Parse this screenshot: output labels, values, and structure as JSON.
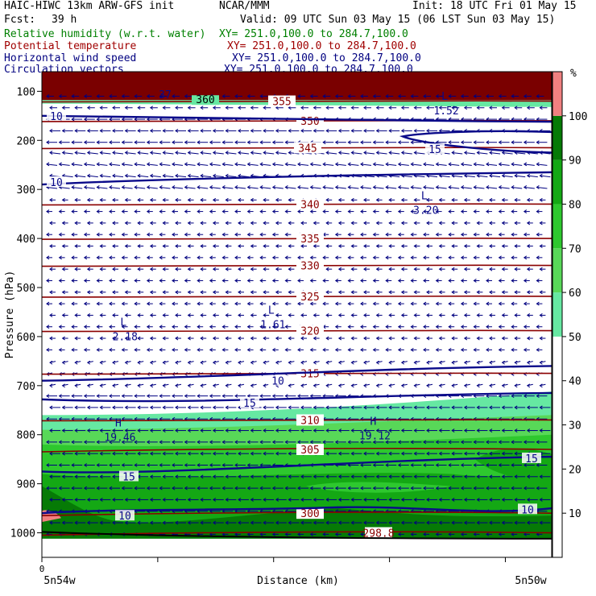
{
  "header": {
    "model": "HAIC-HIWC 13km ARW-GFS init",
    "org": "NCAR/MMM",
    "init": "Init: 18 UTC Fri 01 May 15",
    "fcst_label": "Fcst:",
    "fcst_value": "39 h",
    "valid": "Valid: 09 UTC Sun 03 May 15 (06 LST Sun 03 May 15)",
    "fields": [
      {
        "name": "Relative humidity (w.r.t. water)",
        "xy": "XY= 251.0,100.0 to 284.7,100.0",
        "color": "#008000"
      },
      {
        "name": "Potential temperature",
        "xy": "XY= 251.0,100.0 to 284.7,100.0",
        "color": "#a00000"
      },
      {
        "name": "Horizontal wind speed",
        "xy": "XY= 251.0,100.0 to 284.7,100.0",
        "color": "#000080"
      },
      {
        "name": "Circulation vectors",
        "xy": "XY= 251.0,100.0 to 284.7,100.0",
        "color": "#000080"
      }
    ]
  },
  "chart_data": {
    "type": "cross-section",
    "xlabel": "Distance (km)",
    "ylabel": "Pressure (hPa)",
    "x_tick_zero": "0",
    "x_left_label": "5n54w",
    "x_right_label": "5n50w",
    "y_ticks": [
      100,
      200,
      300,
      400,
      500,
      600,
      700,
      800,
      900,
      1000
    ],
    "ylim": [
      1050,
      60
    ],
    "colorbar": {
      "unit": "%",
      "ticks": [
        10,
        20,
        30,
        40,
        50,
        60,
        70,
        80,
        90,
        100
      ],
      "bins": [
        {
          "from": 50,
          "to": 60,
          "color": "#66e8a2"
        },
        {
          "from": 60,
          "to": 70,
          "color": "#58d858"
        },
        {
          "from": 70,
          "to": 80,
          "color": "#2ec82e"
        },
        {
          "from": 80,
          "to": 90,
          "color": "#14a814"
        },
        {
          "from": 90,
          "to": 100,
          "color": "#067a06"
        },
        {
          "from": 100,
          "to": 110,
          "color": "#f08080"
        }
      ]
    },
    "theta_lines": [
      {
        "p": 120,
        "label": "355"
      },
      {
        "p": 160,
        "label": "350"
      },
      {
        "p": 215,
        "label": "345"
      },
      {
        "p": 330,
        "label": "340"
      },
      {
        "p": 400,
        "label": "335"
      },
      {
        "p": 455,
        "label": "330"
      },
      {
        "p": 518,
        "label": "325"
      },
      {
        "p": 588,
        "label": "320"
      },
      {
        "p": 675,
        "label": "315"
      },
      {
        "p": 770,
        "label": "310"
      },
      {
        "p": 830,
        "label": "305"
      },
      {
        "p": 960,
        "label": "300"
      },
      {
        "p": 1000,
        "label": "298.8"
      }
    ],
    "theta_top_label": "360",
    "wind_labels": [
      {
        "p": 150,
        "label": "10"
      },
      {
        "p": 285,
        "label": "10"
      },
      {
        "p": 690,
        "label": "10"
      },
      {
        "p": 735,
        "label": "15"
      },
      {
        "p": 885,
        "label": "15"
      },
      {
        "p": 848,
        "label": "15"
      },
      {
        "p": 965,
        "label": "10"
      },
      {
        "p": 952,
        "label": "10"
      },
      {
        "p": 218,
        "label": "15"
      }
    ],
    "extrema": [
      {
        "type": "L",
        "value": "2.18",
        "x_frac": 0.16,
        "p": 588
      },
      {
        "type": "L",
        "value": "1.61",
        "x_frac": 0.45,
        "p": 563
      },
      {
        "type": "L",
        "value": "3.20",
        "x_frac": 0.75,
        "p": 330
      },
      {
        "type": "H",
        "value": "19.46",
        "x_frac": 0.15,
        "p": 793
      },
      {
        "type": "H",
        "value": "19.12",
        "x_frac": 0.65,
        "p": 790
      },
      {
        "type": "L",
        "value": "1.52",
        "x_frac": 0.79,
        "p": 127
      }
    ],
    "top_partial": "37"
  }
}
